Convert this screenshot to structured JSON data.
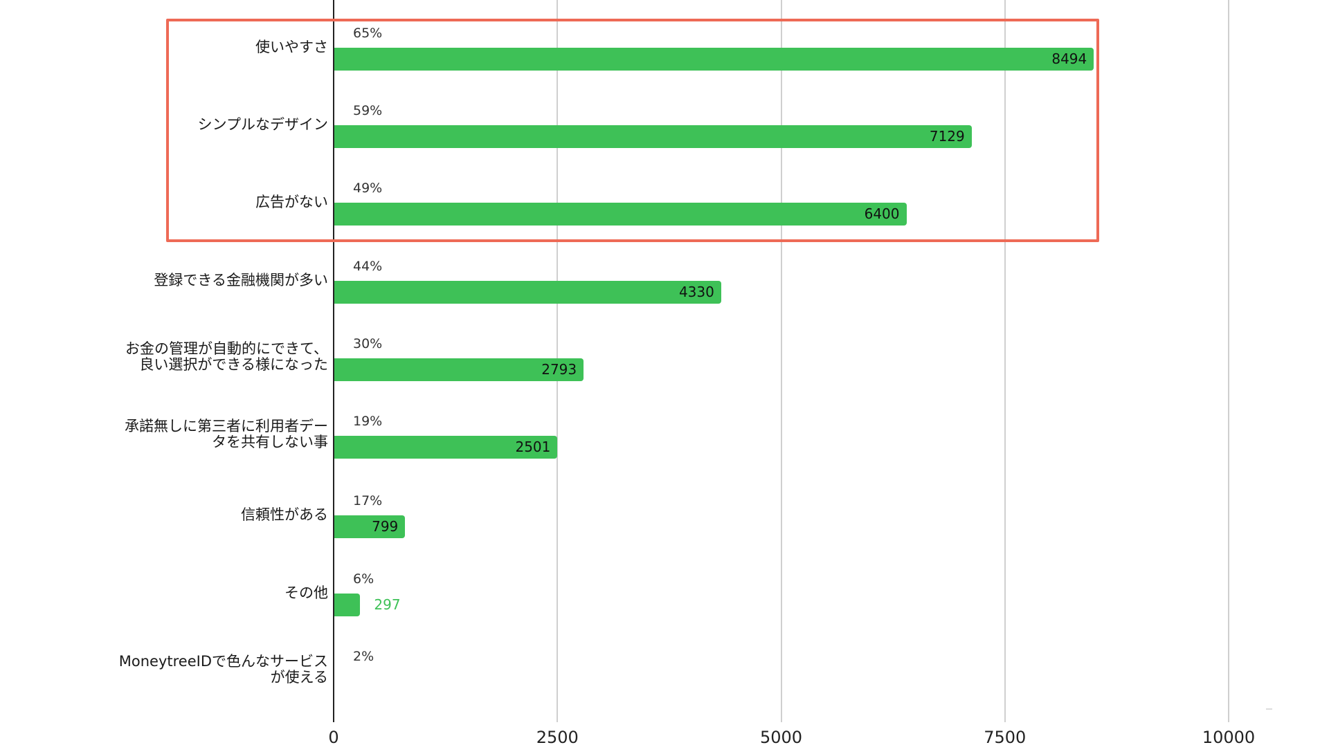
{
  "chart_data": {
    "type": "bar",
    "orientation": "horizontal",
    "title": "",
    "xlabel": "",
    "ylabel": "",
    "xlim": [
      0,
      10000
    ],
    "x_ticks": [
      "0",
      "2500",
      "5000",
      "7500",
      "10000"
    ],
    "grid": true,
    "categories": [
      "使いやすさ",
      "シンプルなデザイン",
      "広告がない",
      "登録できる金融機関が多い",
      "お金の管理が自動的にできて、良い選択ができる様になった",
      "承諾無しに第三者に利用者データを共有しない事",
      "信頼性がある",
      "その他",
      "MoneytreeIDで色んなサービスが使える"
    ],
    "values": [
      8494,
      7129,
      6400,
      4330,
      2793,
      2501,
      799,
      297,
      null
    ],
    "percent_labels": [
      "65%",
      "59%",
      "49%",
      "44%",
      "30%",
      "19%",
      "17%",
      "6%",
      "2%"
    ],
    "bar_color": "#3ec157",
    "annotation": "Red rectangle highlights the top three categories"
  },
  "axis": {
    "ticks": [
      {
        "label": "0",
        "value": 0
      },
      {
        "label": "2500",
        "value": 2500
      },
      {
        "label": "5000",
        "value": 5000
      },
      {
        "label": "7500",
        "value": 7500
      },
      {
        "label": "10000",
        "value": 10000
      }
    ]
  },
  "rows": [
    {
      "label_lines": [
        "使いやすさ"
      ],
      "pct": "65%",
      "value": 8494,
      "value_text": "8494"
    },
    {
      "label_lines": [
        "シンプルなデザイン"
      ],
      "pct": "59%",
      "value": 7129,
      "value_text": "7129"
    },
    {
      "label_lines": [
        "広告がない"
      ],
      "pct": "49%",
      "value": 6400,
      "value_text": "6400"
    },
    {
      "label_lines": [
        "登録できる金融機関が多い"
      ],
      "pct": "44%",
      "value": 4330,
      "value_text": "4330"
    },
    {
      "label_lines": [
        "お金の管理が自動的にできて、",
        "良い選択ができる様になった"
      ],
      "pct": "30%",
      "value": 2793,
      "value_text": "2793"
    },
    {
      "label_lines": [
        "承諾無しに第三者に利用者デー",
        "タを共有しない事"
      ],
      "pct": "19%",
      "value": 2501,
      "value_text": "2501"
    },
    {
      "label_lines": [
        "信頼性がある"
      ],
      "pct": "17%",
      "value": 799,
      "value_text": "799"
    },
    {
      "label_lines": [
        "その他"
      ],
      "pct": "6%",
      "value": 297,
      "value_text": "297"
    },
    {
      "label_lines": [
        "MoneytreeIDで色んなサービス",
        "が使える"
      ],
      "pct": "2%",
      "value": null,
      "value_text": ""
    }
  ],
  "colors": {
    "bar": "#3ec157",
    "highlight": "#ee6a56",
    "grid": "#cfcfcf"
  }
}
